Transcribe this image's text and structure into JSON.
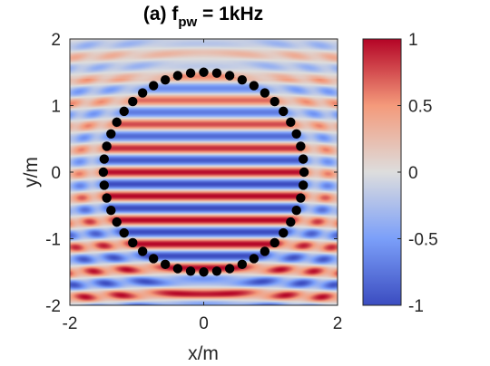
{
  "chart_data": {
    "type": "heatmap",
    "title": {
      "prefix": "(a) f",
      "subscript": "pw",
      "suffix": " = 1kHz"
    },
    "xlabel": "x/m",
    "ylabel": "y/m",
    "xlim": [
      -2,
      2
    ],
    "ylim": [
      -2,
      2
    ],
    "x_ticks": [
      -2,
      0,
      2
    ],
    "x_tick_labels": [
      "-2",
      "0",
      "2"
    ],
    "y_ticks": [
      -2,
      -1,
      0,
      1,
      2
    ],
    "y_tick_labels": [
      "-2",
      "-1",
      "0",
      "1",
      "2"
    ],
    "colorbar": {
      "range": [
        -1,
        1
      ],
      "ticks": [
        -1,
        -0.5,
        0,
        0.5,
        1
      ],
      "tick_labels": [
        "-1",
        "-0.5",
        "0",
        "0.5",
        "1"
      ],
      "colormap": "coolwarm"
    },
    "field": {
      "description": "plane wave propagating in y with scattered field outside a circular array",
      "approx_wavelength_m": 0.1
    },
    "markers": {
      "shape": "circle",
      "color": "#000000",
      "count": 48,
      "center": [
        0,
        0
      ],
      "radius": 1.5,
      "description": "secondary source positions"
    },
    "grid": false,
    "colors": {
      "high": "#b40426",
      "mid": "#dddddd",
      "low": "#3b4cc0"
    }
  }
}
